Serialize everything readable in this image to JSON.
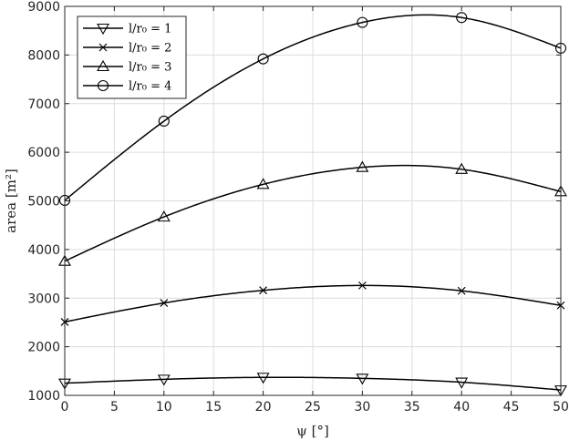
{
  "chart_data": {
    "type": "line",
    "title": "",
    "xlabel": "ψ [°]",
    "ylabel": "area [m²]",
    "xlim": [
      0,
      50
    ],
    "ylim": [
      1000,
      9000
    ],
    "xticks": [
      0,
      5,
      10,
      15,
      20,
      25,
      30,
      35,
      40,
      45,
      50
    ],
    "yticks": [
      1000,
      2000,
      3000,
      4000,
      5000,
      6000,
      7000,
      8000,
      9000
    ],
    "grid": true,
    "legend_position": "top-left",
    "line_color": "#000000",
    "x": [
      0,
      10,
      20,
      30,
      40,
      50
    ],
    "series": [
      {
        "name": "l/r₀ = 1",
        "marker": "triangle-down",
        "values": [
          1250,
          1330,
          1370,
          1350,
          1270,
          1110
        ]
      },
      {
        "name": "l/r₀ = 2",
        "marker": "x",
        "values": [
          2510,
          2900,
          3160,
          3260,
          3150,
          2850
        ]
      },
      {
        "name": "l/r₀ = 3",
        "marker": "triangle-up",
        "values": [
          3760,
          4670,
          5340,
          5690,
          5650,
          5190
        ]
      },
      {
        "name": "l/r₀ = 4",
        "marker": "circle",
        "values": [
          5010,
          6640,
          7920,
          8670,
          8770,
          8140
        ]
      }
    ]
  }
}
